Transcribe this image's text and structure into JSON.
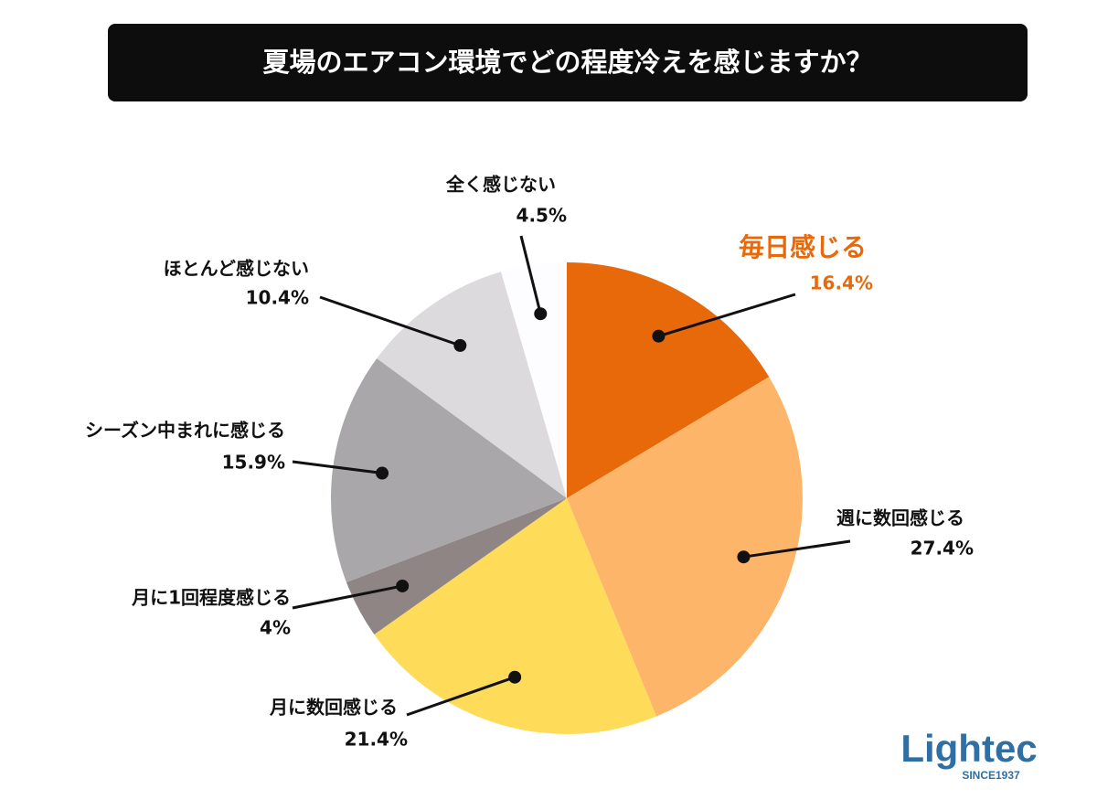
{
  "chart_data": {
    "type": "pie",
    "title": "夏場のエアコン環境でどの程度冷えを感じますか？",
    "categories": [
      "毎日感じる",
      "週に数回感じる",
      "月に数回感じる",
      "月に1回程度感じる",
      "シーズン中まれに感じる",
      "ほとんど感じない",
      "全く感じない"
    ],
    "values": [
      16.4,
      27.4,
      21.4,
      4,
      15.9,
      10.4,
      4.5
    ],
    "value_labels": [
      "16.4%",
      "27.4%",
      "21.4%",
      "4%",
      "15.9%",
      "10.4%",
      "4.5%"
    ],
    "colors": [
      "#e8690a",
      "#fdb56a",
      "#fedc5a",
      "#8e8584",
      "#a9a7aa",
      "#dcdadd",
      "#fdfcfe"
    ]
  },
  "logo": {
    "name": "Lightec",
    "since": "SINCE1937"
  }
}
